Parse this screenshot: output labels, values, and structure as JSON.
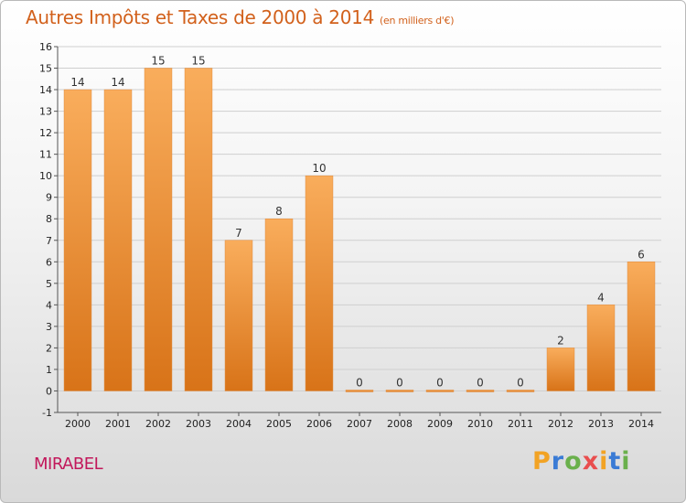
{
  "title": "Autres Impôts et Taxes de 2000 à 2014",
  "subtitle": "(en milliers d'€)",
  "commune": "MIRABEL",
  "logo": {
    "letters": [
      "P",
      "r",
      "o",
      "x",
      "i",
      "t",
      "i"
    ],
    "colors": [
      "#f2a324",
      "#3a7bd5",
      "#6ab04c",
      "#e94e4e",
      "#f2a324",
      "#3a7bd5",
      "#6ab04c"
    ]
  },
  "colors": {
    "bar_light": "#f9ad5c",
    "bar_dark": "#d87318",
    "axis": "#555555",
    "grid": "#cfcfcf"
  },
  "chart_data": {
    "type": "bar",
    "categories": [
      "2000",
      "2001",
      "2002",
      "2003",
      "2004",
      "2005",
      "2006",
      "2007",
      "2008",
      "2009",
      "2010",
      "2011",
      "2012",
      "2013",
      "2014"
    ],
    "values": [
      14,
      14,
      15,
      15,
      7,
      8,
      10,
      0,
      0,
      0,
      0,
      0,
      2,
      4,
      6
    ],
    "data_labels": [
      "14",
      "14",
      "15",
      "15",
      "7",
      "8",
      "10",
      "0",
      "0",
      "0",
      "0",
      "0",
      "2",
      "4",
      "6"
    ],
    "ylim": [
      -1,
      16
    ],
    "yticks": [
      "-1",
      "0",
      "1",
      "2",
      "3",
      "4",
      "5",
      "6",
      "7",
      "8",
      "9",
      "10",
      "11",
      "12",
      "13",
      "14",
      "15",
      "16"
    ],
    "grid": true,
    "legend": "none"
  }
}
